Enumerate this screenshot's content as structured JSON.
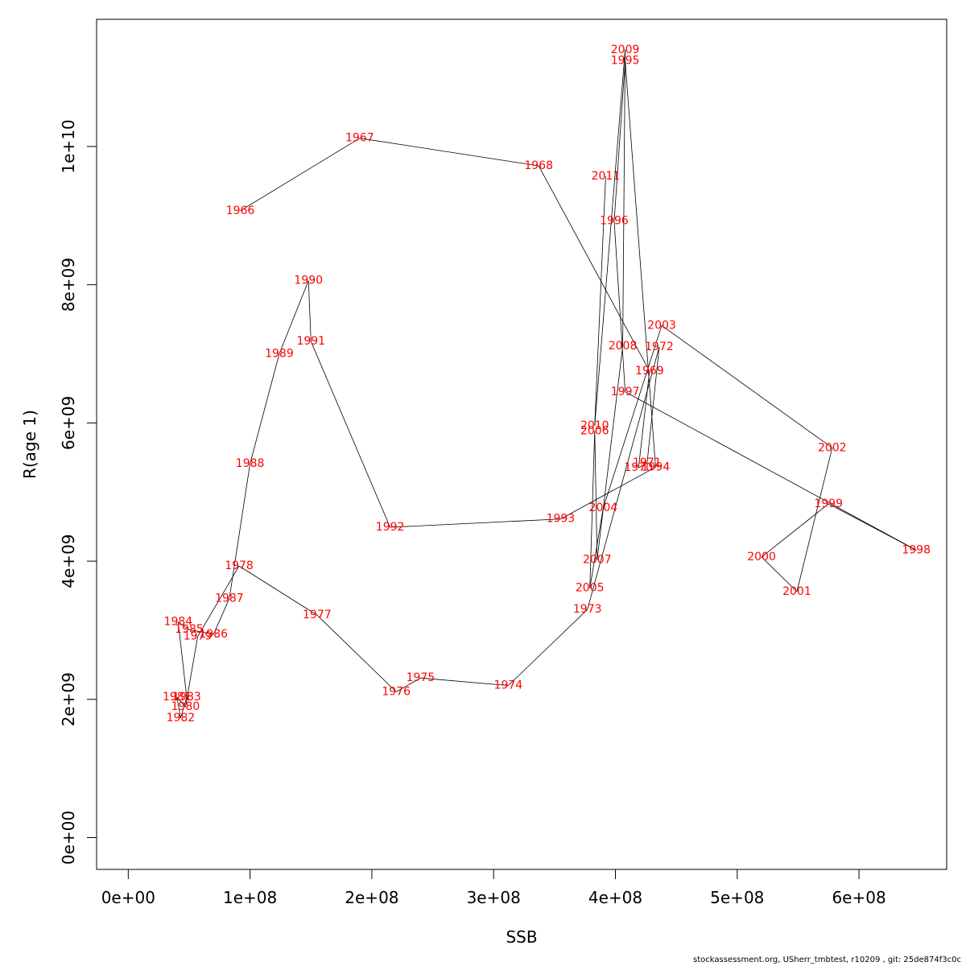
{
  "chart_data": {
    "type": "scatter",
    "xlabel": "SSB",
    "ylabel": "R(age 1)",
    "xlim": [
      -26000000,
      672000000
    ],
    "ylim": [
      -460000000,
      11840000000
    ],
    "x_ticks": [
      {
        "value": 0,
        "label": "0e+00"
      },
      {
        "value": 100000000,
        "label": "1e+08"
      },
      {
        "value": 200000000,
        "label": "2e+08"
      },
      {
        "value": 300000000,
        "label": "3e+08"
      },
      {
        "value": 400000000,
        "label": "4e+08"
      },
      {
        "value": 500000000,
        "label": "5e+08"
      },
      {
        "value": 600000000,
        "label": "6e+08"
      }
    ],
    "y_ticks": [
      {
        "value": 0,
        "label": "0e+00"
      },
      {
        "value": 2000000000,
        "label": "2e+09"
      },
      {
        "value": 4000000000,
        "label": "4e+09"
      },
      {
        "value": 6000000000,
        "label": "6e+09"
      },
      {
        "value": 8000000000,
        "label": "8e+09"
      },
      {
        "value": 10000000000,
        "label": "1e+10"
      }
    ],
    "grid": false,
    "line_color": "#000000",
    "label_color": "#ff0000",
    "points": [
      {
        "year": "1966",
        "ssb": 92000000,
        "r": 9070000000
      },
      {
        "year": "1967",
        "ssb": 190000000,
        "r": 10120000000
      },
      {
        "year": "1968",
        "ssb": 337000000,
        "r": 9720000000
      },
      {
        "year": "1969",
        "ssb": 428000000,
        "r": 6750000000
      },
      {
        "year": "1970",
        "ssb": 419000000,
        "r": 5350000000
      },
      {
        "year": "1971",
        "ssb": 426000000,
        "r": 5420000000
      },
      {
        "year": "1972",
        "ssb": 436000000,
        "r": 7100000000
      },
      {
        "year": "1973",
        "ssb": 377000000,
        "r": 3300000000
      },
      {
        "year": "1974",
        "ssb": 312000000,
        "r": 2200000000
      },
      {
        "year": "1975",
        "ssb": 240000000,
        "r": 2310000000
      },
      {
        "year": "1976",
        "ssb": 220000000,
        "r": 2110000000
      },
      {
        "year": "1977",
        "ssb": 155000000,
        "r": 3220000000
      },
      {
        "year": "1978",
        "ssb": 91000000,
        "r": 3930000000
      },
      {
        "year": "1979",
        "ssb": 57000000,
        "r": 2910000000
      },
      {
        "year": "1980",
        "ssb": 47000000,
        "r": 1890000000
      },
      {
        "year": "1981",
        "ssb": 40000000,
        "r": 2030000000
      },
      {
        "year": "1982",
        "ssb": 43000000,
        "r": 1730000000
      },
      {
        "year": "1983",
        "ssb": 48000000,
        "r": 2030000000
      },
      {
        "year": "1984",
        "ssb": 41000000,
        "r": 3120000000
      },
      {
        "year": "1985",
        "ssb": 50000000,
        "r": 3010000000
      },
      {
        "year": "1986",
        "ssb": 70000000,
        "r": 2940000000
      },
      {
        "year": "1987",
        "ssb": 83000000,
        "r": 3460000000
      },
      {
        "year": "1988",
        "ssb": 100000000,
        "r": 5410000000
      },
      {
        "year": "1989",
        "ssb": 124000000,
        "r": 7000000000
      },
      {
        "year": "1990",
        "ssb": 148000000,
        "r": 8060000000
      },
      {
        "year": "1991",
        "ssb": 150000000,
        "r": 7180000000
      },
      {
        "year": "1992",
        "ssb": 215000000,
        "r": 4490000000
      },
      {
        "year": "1993",
        "ssb": 355000000,
        "r": 4610000000
      },
      {
        "year": "1994",
        "ssb": 433000000,
        "r": 5360000000
      },
      {
        "year": "1995",
        "ssb": 408000000,
        "r": 11240000000
      },
      {
        "year": "1996",
        "ssb": 399000000,
        "r": 8920000000
      },
      {
        "year": "1997",
        "ssb": 408000000,
        "r": 6450000000
      },
      {
        "year": "1998",
        "ssb": 647000000,
        "r": 4160000000
      },
      {
        "year": "1999",
        "ssb": 575000000,
        "r": 4830000000
      },
      {
        "year": "2000",
        "ssb": 520000000,
        "r": 4060000000
      },
      {
        "year": "2001",
        "ssb": 549000000,
        "r": 3560000000
      },
      {
        "year": "2002",
        "ssb": 578000000,
        "r": 5640000000
      },
      {
        "year": "2003",
        "ssb": 438000000,
        "r": 7410000000
      },
      {
        "year": "2004",
        "ssb": 390000000,
        "r": 4770000000
      },
      {
        "year": "2005",
        "ssb": 379000000,
        "r": 3610000000
      },
      {
        "year": "2006",
        "ssb": 383000000,
        "r": 5880000000
      },
      {
        "year": "2007",
        "ssb": 385000000,
        "r": 4020000000
      },
      {
        "year": "2008",
        "ssb": 406000000,
        "r": 7110000000
      },
      {
        "year": "2009",
        "ssb": 408000000,
        "r": 11400000000
      },
      {
        "year": "2010",
        "ssb": 383000000,
        "r": 5960000000
      },
      {
        "year": "2011",
        "ssb": 392000000,
        "r": 9570000000
      }
    ]
  },
  "footer_text": "stockassessment.org, USherr_tmbtest, r10209 , git: 25de874f3c0c"
}
